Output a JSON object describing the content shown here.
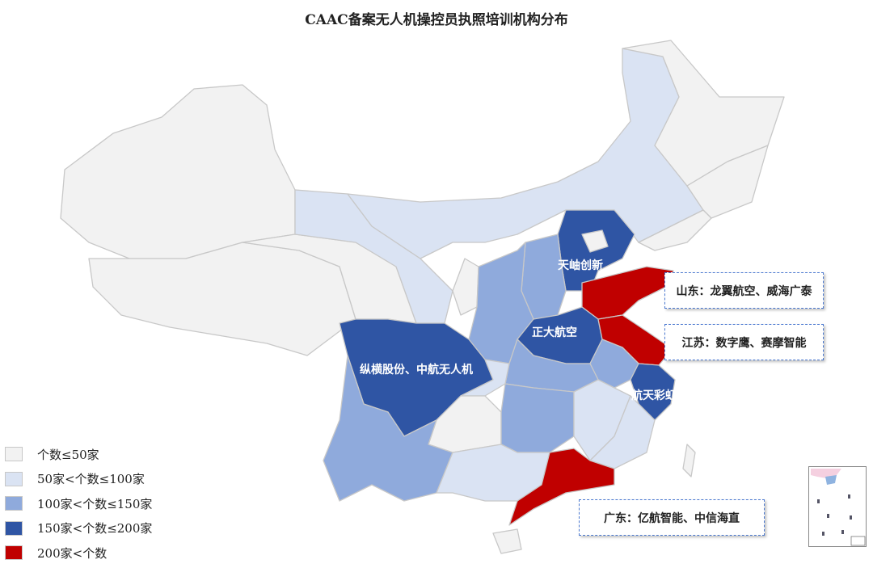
{
  "title": "CAAC备案无人机操控员执照培训机构分布",
  "colors": {
    "level1": "#f2f2f2",
    "level2": "#dae3f3",
    "level3": "#8faadc",
    "level4": "#2f55a4",
    "level5": "#c00000",
    "border": "#c8c8c8",
    "callout_border": "#4a78d0"
  },
  "legend": [
    {
      "label": "个数≤50家",
      "level": 1
    },
    {
      "label": "50家<个数≤100家",
      "level": 2
    },
    {
      "label": "100家<个数≤150家",
      "level": 3
    },
    {
      "label": "150家<个数≤200家",
      "level": 4
    },
    {
      "label": "200家<个数",
      "level": 5
    }
  ],
  "map_labels": {
    "hebei": "天岫创新",
    "henan": "正大航空",
    "sichuan": "纵横股份、中航无人机",
    "zhejiang": "航天彩虹"
  },
  "callouts": {
    "shandong": "山东：龙翼航空、威海广泰",
    "jiangsu": "江苏：数字鹰、赛摩智能",
    "guangdong": "广东：亿航智能、中信海直"
  }
}
